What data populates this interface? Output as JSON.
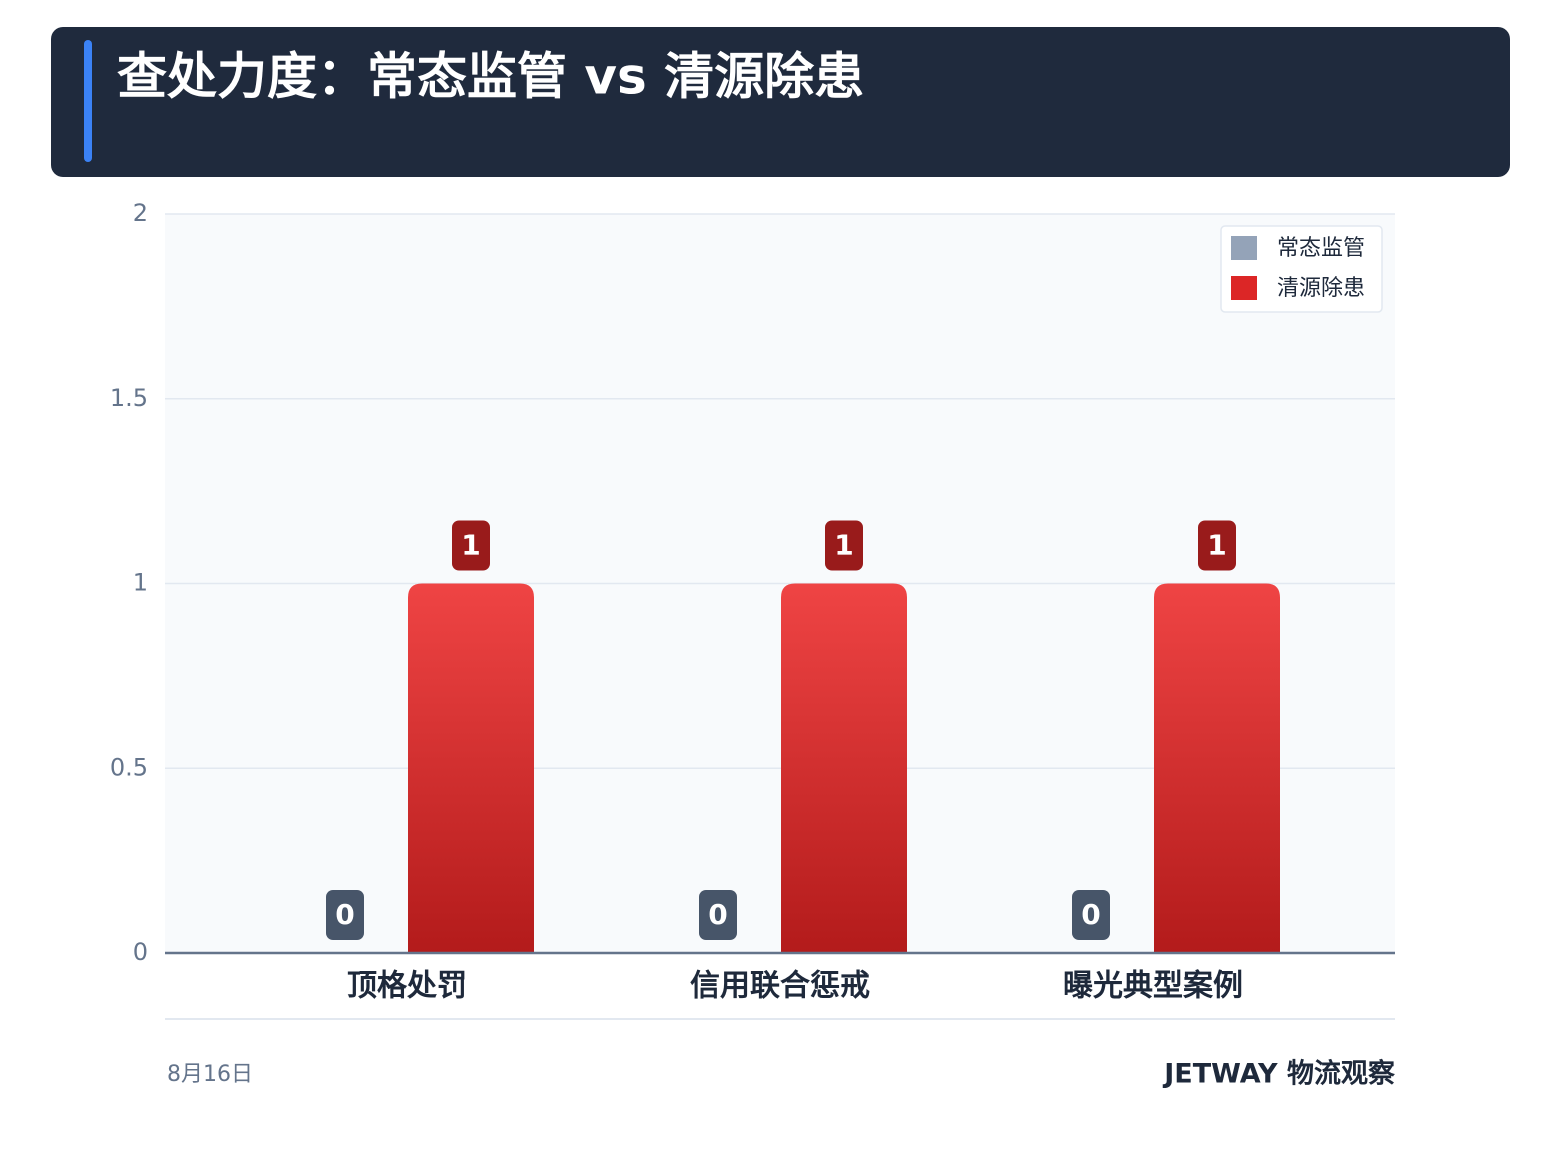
{
  "chart_data": {
    "type": "bar",
    "title": "查处力度：常态监管 vs 清源除患",
    "categories": [
      "顶格处罚",
      "信用联合惩戒",
      "曝光典型案例"
    ],
    "series": [
      {
        "name": "常态监管",
        "color": "#94a3b8",
        "values": [
          0,
          0,
          0
        ]
      },
      {
        "name": "清源除患",
        "color": "#dc2626",
        "values": [
          1,
          1,
          1
        ]
      }
    ],
    "ylim": [
      0,
      2
    ],
    "yticks": [
      0,
      0.5,
      1,
      1.5,
      2
    ],
    "grid": true,
    "legend": "top-right",
    "date": "8月16日",
    "brand": "JETWAY 物流观察"
  }
}
